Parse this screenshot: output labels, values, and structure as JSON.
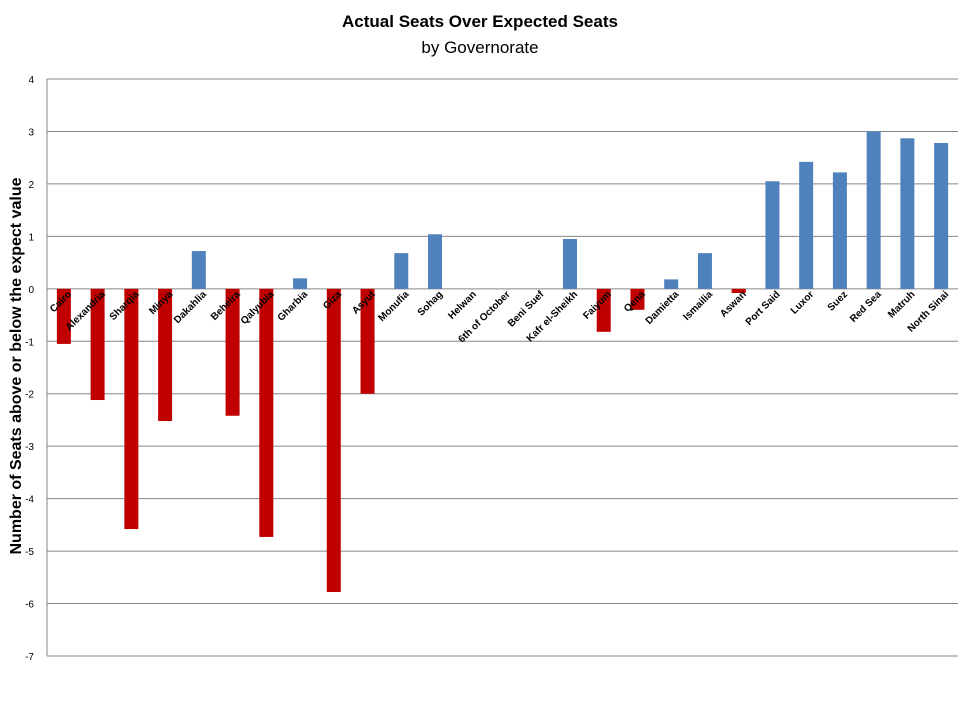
{
  "chart_data": {
    "type": "bar",
    "title": "Actual Seats Over Expected Seats",
    "subtitle": "by Governorate",
    "xlabel": "",
    "ylabel": "Number of  Seats above or below the expect value",
    "ylim": [
      -7,
      4
    ],
    "yticks": [
      4,
      3,
      2,
      1,
      0,
      -1,
      -2,
      -3,
      -4,
      -5,
      -6,
      -7
    ],
    "grid": true,
    "legend": "none",
    "categories": [
      "Cairo",
      "Alexandria",
      "Sharqia",
      "Minya",
      "Dakahlia",
      "Beheira",
      "Qalyubia",
      "Gharbia",
      "Giza",
      "Asyut",
      "Monufia",
      "Sohag",
      "Helwan",
      "6th of October",
      "Beni Suef",
      "Kafr el-Sheikh",
      "Faiyum",
      "Qena",
      "Damietta",
      "Ismailia",
      "Aswan",
      "Port Said",
      "Luxor",
      "Suez",
      "Red Sea",
      "Matruh",
      "North Sinai"
    ],
    "values": [
      -1.05,
      -2.12,
      -4.58,
      -2.52,
      0.72,
      -2.42,
      -4.73,
      0.2,
      -5.78,
      -2.0,
      0.68,
      1.04,
      0,
      0,
      0,
      0.95,
      -0.82,
      -0.4,
      0.18,
      0.68,
      -0.08,
      2.05,
      2.42,
      2.22,
      3.0,
      2.87,
      2.78
    ],
    "colors": {
      "positive": "#4f81bd",
      "negative": "#c00000"
    }
  }
}
